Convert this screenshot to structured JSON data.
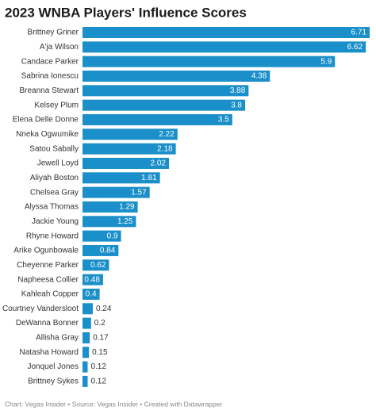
{
  "chart_data": {
    "type": "bar",
    "orientation": "horizontal",
    "title": "2023 WNBA Players' Influence Scores",
    "footer": "Chart: Vegas Insider • Source: Vegas Insider • Created with Datawrapper",
    "color": "#1a8fc9",
    "categories": [
      "Brittney Griner",
      "A'ja Wilson",
      "Candace Parker",
      "Sabrina Ionescu",
      "Breanna Stewart",
      "Kelsey Plum",
      "Elena Delle Donne",
      "Nneka Ogwumike",
      "Satou Sabally",
      "Jewell Loyd",
      "Aliyah Boston",
      "Chelsea Gray",
      "Alyssa Thomas",
      "Jackie Young",
      "Rhyne Howard",
      "Arike Ogunbowale",
      "Cheyenne Parker",
      "Napheesa Collier",
      "Kahleah Copper",
      "Courtney Vandersloot",
      "DeWanna Bonner",
      "Allisha Gray",
      "Natasha Howard",
      "Jonquel Jones",
      "Brittney Sykes"
    ],
    "values": [
      6.71,
      6.62,
      5.9,
      4.38,
      3.88,
      3.8,
      3.5,
      2.22,
      2.18,
      2.02,
      1.81,
      1.57,
      1.29,
      1.25,
      0.9,
      0.84,
      0.62,
      0.48,
      0.4,
      0.24,
      0.2,
      0.17,
      0.15,
      0.12,
      0.12
    ]
  }
}
